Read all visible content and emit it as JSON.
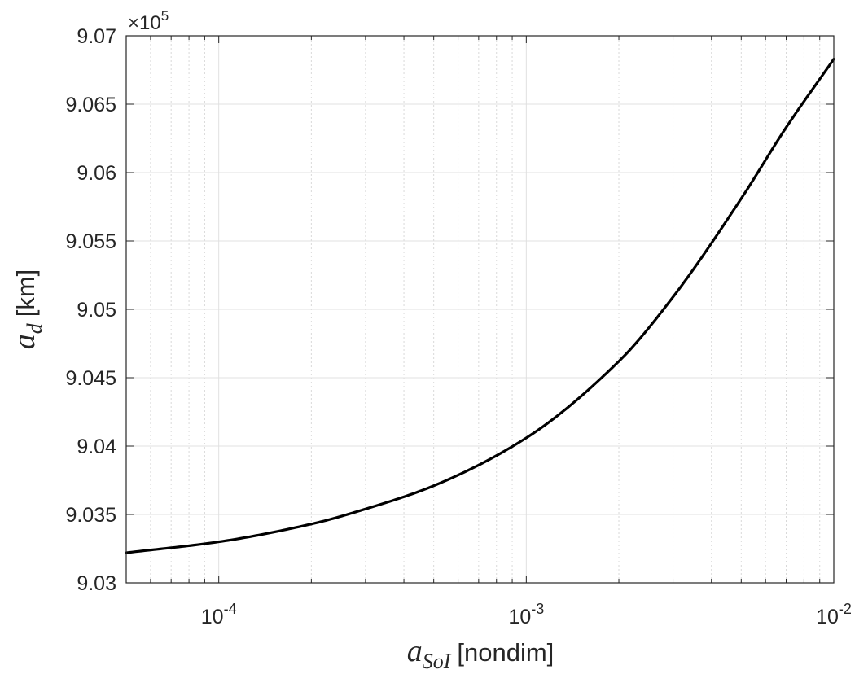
{
  "chart_data": {
    "type": "line",
    "x_scale": "log",
    "xlim": [
      5e-05,
      0.01
    ],
    "ylim": [
      903000,
      907000
    ],
    "exponent_label": {
      "prefix": "×10",
      "power": "5"
    },
    "y_ticks": [
      {
        "value": 903000,
        "label": "9.03"
      },
      {
        "value": 903500,
        "label": "9.035"
      },
      {
        "value": 904000,
        "label": "9.04"
      },
      {
        "value": 904500,
        "label": "9.045"
      },
      {
        "value": 905000,
        "label": "9.05"
      },
      {
        "value": 905500,
        "label": "9.055"
      },
      {
        "value": 906000,
        "label": "9.06"
      },
      {
        "value": 906500,
        "label": "9.065"
      },
      {
        "value": 907000,
        "label": "9.07"
      }
    ],
    "x_ticks": [
      {
        "value": 0.0001,
        "base": "10",
        "exp": "-4"
      },
      {
        "value": 0.001,
        "base": "10",
        "exp": "-3"
      },
      {
        "value": 0.01,
        "base": "10",
        "exp": "-2"
      }
    ],
    "xlabel": {
      "symbol": "a",
      "subscript": "SoI",
      "unit": "[nondim]"
    },
    "ylabel": {
      "symbol": "a",
      "subscript": "d",
      "unit": "[km]"
    },
    "grid": true,
    "series": [
      {
        "color": "#000000",
        "x": [
          5e-05,
          0.0001,
          0.0002,
          0.0003,
          0.0005,
          0.001,
          0.002,
          0.003,
          0.005,
          0.007,
          0.01
        ],
        "y": [
          903220,
          903300,
          903430,
          903540,
          903710,
          904060,
          904620,
          905090,
          905810,
          906330,
          906830
        ]
      }
    ]
  }
}
